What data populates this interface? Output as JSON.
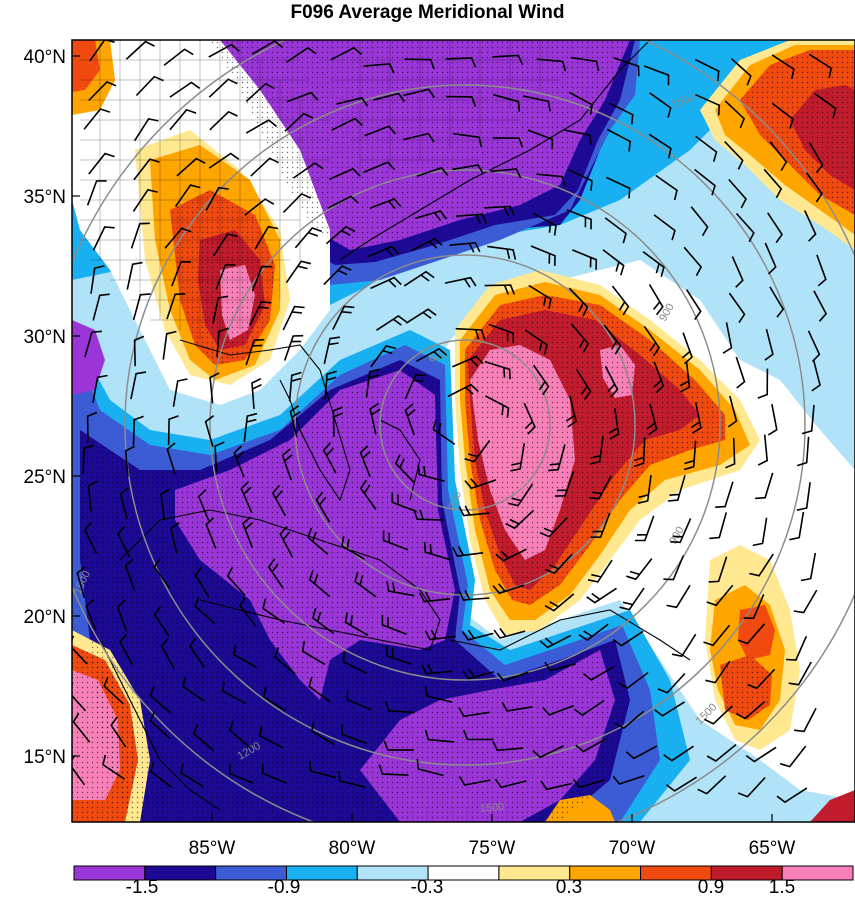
{
  "title": "F096 Average Meridional Wind",
  "axes": {
    "lat_labels": [
      "40°N",
      "35°N",
      "30°N",
      "25°N",
      "20°N",
      "15°N"
    ],
    "lon_labels": [
      "85°W",
      "80°W",
      "75°W",
      "70°W",
      "65°W"
    ]
  },
  "colorbar": {
    "labels": [
      "-1.5",
      "-0.9",
      "-0.3",
      "0.3",
      "0.9",
      "1.5"
    ],
    "colors": [
      "#9a35d8",
      "#1c0a94",
      "#3c5cd6",
      "#18b0f0",
      "#b0e2f8",
      "#ffffff",
      "#ffe890",
      "#ffa500",
      "#f04a10",
      "#c01c2e",
      "#f880b8"
    ]
  },
  "contours": {
    "labels": [
      "300",
      "600",
      "900",
      "1500",
      "1200"
    ]
  },
  "colors": {
    "purple": "#9a35d8",
    "navy": "#1c0a94",
    "blue": "#3c5cd6",
    "cyan": "#18b0f0",
    "lightblue": "#b0e2f8",
    "yellow": "#ffe890",
    "orange": "#ffa500",
    "redorange": "#f04a10",
    "darkred": "#c01c2e",
    "pink": "#f880b8",
    "ring": "#8c8c8c"
  }
}
